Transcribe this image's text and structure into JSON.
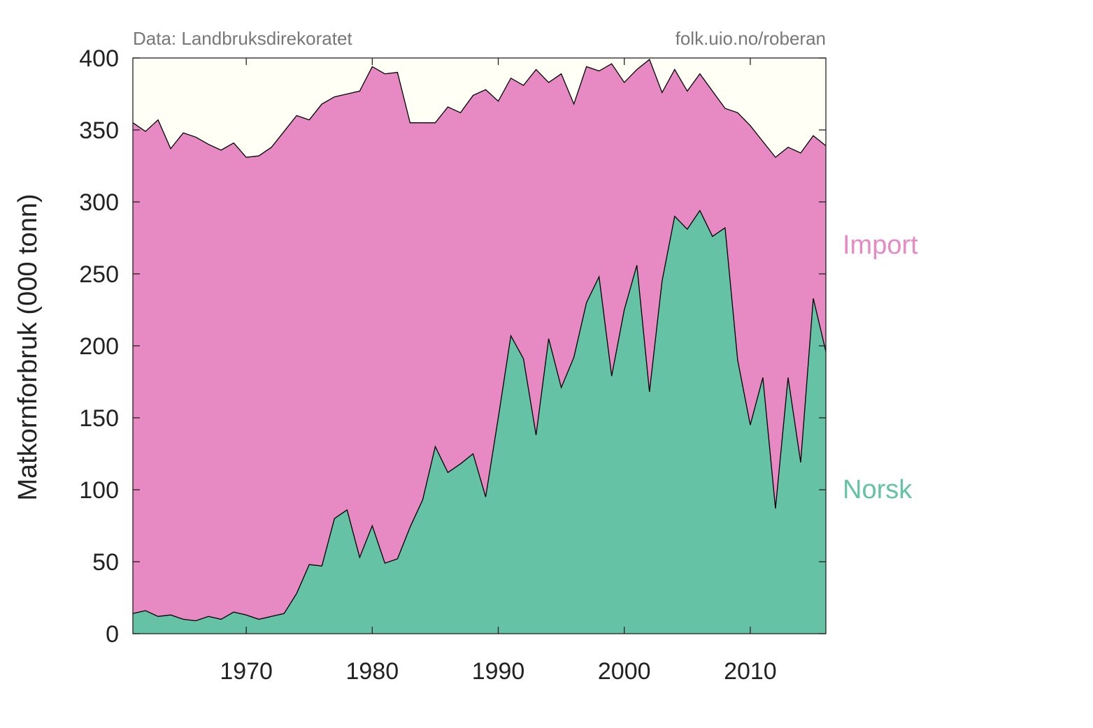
{
  "chart_data": {
    "type": "area",
    "stacked": true,
    "source_note": "Data: Landbruksdirekoratet",
    "credit_note": "folk.uio.no/roberan",
    "ylabel": "Matkornforbruk (000 tonn)",
    "xlabel": "",
    "xlim": [
      1961,
      2016
    ],
    "ylim": [
      0,
      400
    ],
    "x_ticks": [
      1970,
      1980,
      1990,
      2000,
      2010
    ],
    "y_ticks": [
      0,
      50,
      100,
      150,
      200,
      250,
      300,
      350,
      400
    ],
    "background_color": "#fffff5",
    "x": [
      1961,
      1962,
      1963,
      1964,
      1965,
      1966,
      1967,
      1968,
      1969,
      1970,
      1971,
      1972,
      1973,
      1974,
      1975,
      1976,
      1977,
      1978,
      1979,
      1980,
      1981,
      1982,
      1983,
      1984,
      1985,
      1986,
      1987,
      1988,
      1989,
      1990,
      1991,
      1992,
      1993,
      1994,
      1995,
      1996,
      1997,
      1998,
      1999,
      2000,
      2001,
      2002,
      2003,
      2004,
      2005,
      2006,
      2007,
      2008,
      2009,
      2010,
      2011,
      2012,
      2013,
      2014,
      2015,
      2016
    ],
    "total": [
      355,
      349,
      357,
      337,
      348,
      345,
      340,
      336,
      341,
      331,
      332,
      338,
      349,
      360,
      357,
      368,
      373,
      375,
      377,
      394,
      389,
      390,
      355,
      355,
      355,
      366,
      362,
      374,
      378,
      370,
      386,
      381,
      392,
      383,
      389,
      368,
      394,
      391,
      396,
      383,
      392,
      399,
      376,
      392,
      377,
      389,
      377,
      365,
      362,
      353,
      342,
      331,
      338,
      334,
      346,
      339
    ],
    "series": [
      {
        "name": "Norsk",
        "color": "#66c2a5",
        "values": [
          14,
          16,
          12,
          13,
          10,
          9,
          12,
          10,
          15,
          13,
          10,
          12,
          14,
          28,
          48,
          47,
          80,
          86,
          53,
          75,
          49,
          52,
          74,
          93,
          130,
          112,
          118,
          125,
          95,
          150,
          207,
          191,
          138,
          205,
          171,
          192,
          230,
          248,
          179,
          225,
          256,
          168,
          245,
          290,
          281,
          294,
          276,
          282,
          190,
          145,
          178,
          87,
          178,
          119,
          233,
          196
        ]
      },
      {
        "name": "Import",
        "color": "#e78ac3",
        "values": [
          341,
          333,
          345,
          324,
          338,
          336,
          328,
          326,
          326,
          318,
          322,
          326,
          335,
          332,
          309,
          321,
          293,
          289,
          324,
          319,
          340,
          338,
          281,
          262,
          225,
          254,
          244,
          249,
          283,
          220,
          179,
          190,
          254,
          178,
          218,
          176,
          164,
          143,
          217,
          158,
          136,
          231,
          131,
          102,
          96,
          95,
          101,
          83,
          172,
          208,
          164,
          244,
          160,
          215,
          113,
          143
        ]
      }
    ]
  }
}
